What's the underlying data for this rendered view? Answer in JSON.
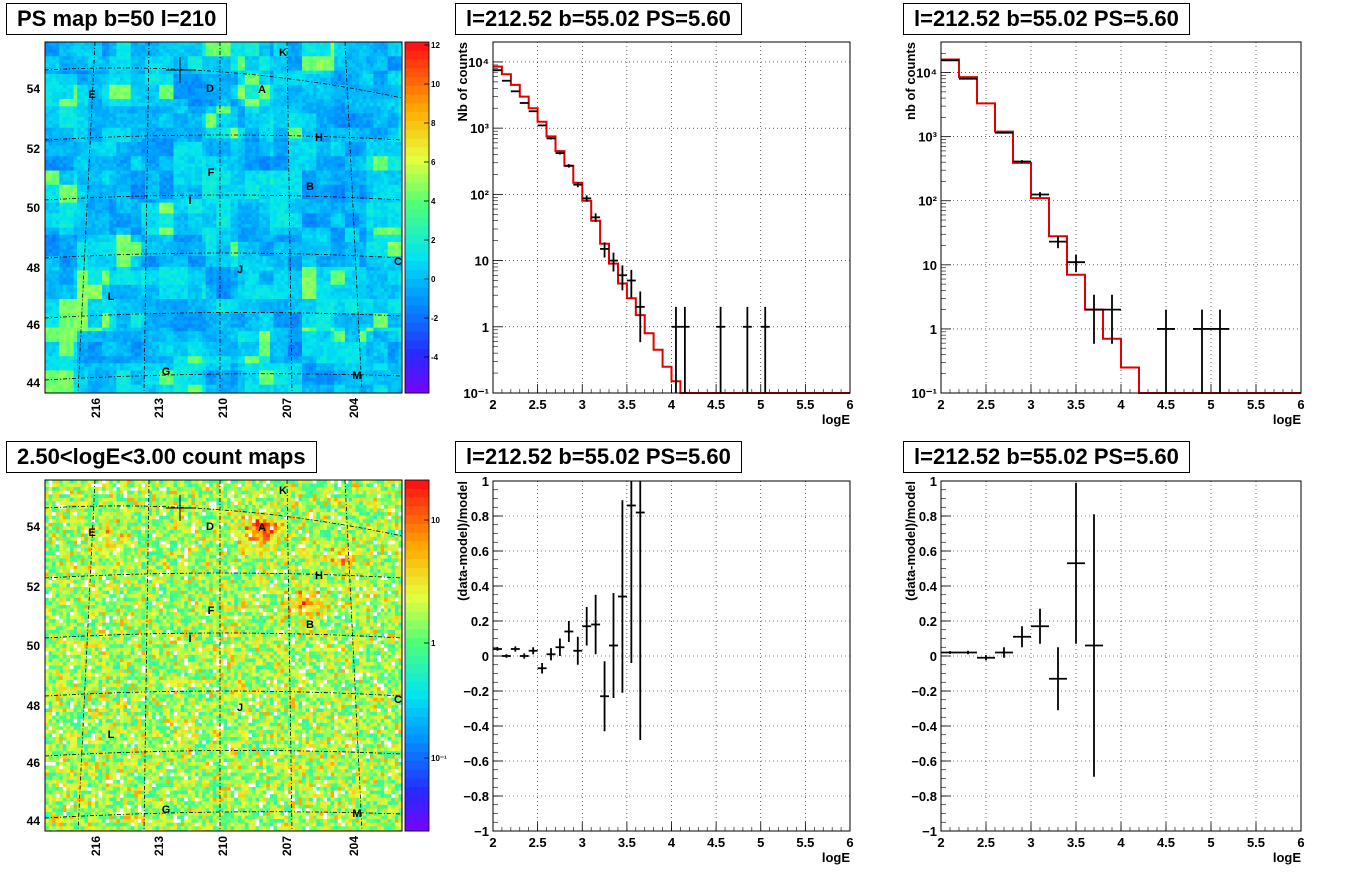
{
  "panels": {
    "map1": {
      "title": "PS map b=50 l=210"
    },
    "map2": {
      "title": "2.50<logE<3.00 count maps"
    },
    "spec1": {
      "title": "l=212.52 b=55.02 PS=5.60"
    },
    "spec2": {
      "title": "l=212.52 b=55.02 PS=5.60"
    },
    "res1": {
      "title": "l=212.52 b=55.02 PS=5.60"
    },
    "res2": {
      "title": "l=212.52 b=55.02 PS=5.60"
    }
  },
  "maps": {
    "y_ticks": [
      "44",
      "46",
      "48",
      "50",
      "52",
      "54"
    ],
    "x_ticks": [
      "216",
      "213",
      "210",
      "207",
      "204"
    ],
    "sources": [
      "K",
      "D",
      "A",
      "E",
      "H",
      "F",
      "B",
      "I",
      "C",
      "J",
      "L",
      "G",
      "M"
    ],
    "map1_scale": [
      "12",
      "10",
      "8",
      "6",
      "4",
      "2",
      "0",
      "-2",
      "-4"
    ],
    "map2_scale": [
      "10",
      "1",
      "10⁻¹"
    ]
  },
  "chart_data": [
    {
      "id": "spec1",
      "type": "line",
      "log_y": true,
      "title": "l=212.52 b=55.02 PS=5.60",
      "xlabel": "logE",
      "ylabel": "Nb of counts",
      "xlim": [
        2,
        6
      ],
      "ylim": [
        0.1,
        20000
      ],
      "grid": true,
      "x_ticks": [
        "2",
        "2.5",
        "3",
        "3.5",
        "4",
        "4.5",
        "5",
        "5.5",
        "6"
      ],
      "y_ticks": [
        "10⁻¹",
        "1",
        "10",
        "10²",
        "10³",
        "10⁴"
      ],
      "data_points": [
        {
          "x": 2.05,
          "y": 7500
        },
        {
          "x": 2.15,
          "y": 5200
        },
        {
          "x": 2.25,
          "y": 3600
        },
        {
          "x": 2.35,
          "y": 2400
        },
        {
          "x": 2.45,
          "y": 1800
        },
        {
          "x": 2.55,
          "y": 1100
        },
        {
          "x": 2.65,
          "y": 700
        },
        {
          "x": 2.75,
          "y": 420
        },
        {
          "x": 2.85,
          "y": 270
        },
        {
          "x": 2.95,
          "y": 140
        },
        {
          "x": 3.05,
          "y": 87
        },
        {
          "x": 3.15,
          "y": 45
        },
        {
          "x": 3.25,
          "y": 15
        },
        {
          "x": 3.35,
          "y": 10
        },
        {
          "x": 3.45,
          "y": 6
        },
        {
          "x": 3.55,
          "y": 5
        },
        {
          "x": 3.65,
          "y": 2
        },
        {
          "x": 4.05,
          "y": 1
        },
        {
          "x": 4.15,
          "y": 1
        },
        {
          "x": 4.55,
          "y": 1
        },
        {
          "x": 4.85,
          "y": 1
        },
        {
          "x": 5.05,
          "y": 1
        }
      ],
      "model_edges": [
        2,
        2.1,
        2.2,
        2.3,
        2.4,
        2.5,
        2.6,
        2.7,
        2.8,
        2.9,
        3.0,
        3.1,
        3.2,
        3.3,
        3.4,
        3.5,
        3.6,
        3.7,
        3.8,
        3.9,
        4.0,
        4.1,
        4.2,
        6.0
      ],
      "model_values": [
        8500,
        6500,
        4500,
        3000,
        2000,
        1250,
        750,
        450,
        270,
        150,
        80,
        40,
        18,
        9,
        4.5,
        2.7,
        1.5,
        0.8,
        0.45,
        0.25,
        0.15,
        0.1,
        0.1
      ]
    },
    {
      "id": "spec2",
      "type": "line",
      "log_y": true,
      "title": "l=212.52 b=55.02 PS=5.60",
      "xlabel": "logE",
      "ylabel": "nb of counts",
      "xlim": [
        2,
        6
      ],
      "ylim": [
        0.1,
        30000
      ],
      "grid": true,
      "x_ticks": [
        "2",
        "2.5",
        "3",
        "3.5",
        "4",
        "4.5",
        "5",
        "5.5",
        "6"
      ],
      "y_ticks": [
        "10⁻¹",
        "1",
        "10",
        "10²",
        "10³",
        "10⁴"
      ],
      "data_points": [
        {
          "x": 2.1,
          "y": 15500
        },
        {
          "x": 2.3,
          "y": 8000
        },
        {
          "x": 2.7,
          "y": 1150
        },
        {
          "x": 2.9,
          "y": 410
        },
        {
          "x": 3.1,
          "y": 125
        },
        {
          "x": 3.3,
          "y": 23
        },
        {
          "x": 3.5,
          "y": 11
        },
        {
          "x": 3.7,
          "y": 2
        },
        {
          "x": 3.9,
          "y": 2
        },
        {
          "x": 4.5,
          "y": 1
        },
        {
          "x": 4.9,
          "y": 1
        },
        {
          "x": 5.1,
          "y": 1
        }
      ],
      "model_edges": [
        2,
        2.2,
        2.4,
        2.6,
        2.8,
        3.0,
        3.2,
        3.4,
        3.6,
        3.8,
        4.0,
        4.2,
        6.0
      ],
      "model_values": [
        16000,
        8500,
        3300,
        1200,
        390,
        110,
        28,
        7,
        2,
        0.7,
        0.25,
        0.1
      ]
    },
    {
      "id": "res1",
      "type": "scatter",
      "title": "l=212.52 b=55.02 PS=5.60",
      "xlabel": "logE",
      "ylabel": "(data-model)/model",
      "xlim": [
        2,
        6
      ],
      "ylim": [
        -1,
        1
      ],
      "grid": true,
      "x_ticks": [
        "2",
        "2.5",
        "3",
        "3.5",
        "4",
        "4.5",
        "5",
        "5.5",
        "6"
      ],
      "y_ticks": [
        "−1",
        "−0.8",
        "−0.6",
        "−0.4",
        "−0.2",
        "0",
        "0.2",
        "0.4",
        "0.6",
        "0.8",
        "1"
      ],
      "points": [
        {
          "x": 2.05,
          "y": 0.04,
          "err": 0.01
        },
        {
          "x": 2.15,
          "y": 0.0,
          "err": 0.01
        },
        {
          "x": 2.25,
          "y": 0.04,
          "err": 0.015
        },
        {
          "x": 2.35,
          "y": 0.0,
          "err": 0.015
        },
        {
          "x": 2.45,
          "y": 0.03,
          "err": 0.02
        },
        {
          "x": 2.55,
          "y": -0.07,
          "err": 0.03
        },
        {
          "x": 2.65,
          "y": 0.01,
          "err": 0.035
        },
        {
          "x": 2.75,
          "y": 0.05,
          "err": 0.05
        },
        {
          "x": 2.85,
          "y": 0.14,
          "err": 0.06
        },
        {
          "x": 2.95,
          "y": 0.03,
          "err": 0.08
        },
        {
          "x": 3.05,
          "y": 0.17,
          "err": 0.11
        },
        {
          "x": 3.15,
          "y": 0.18,
          "err": 0.17
        },
        {
          "x": 3.25,
          "y": -0.23,
          "err": 0.2
        },
        {
          "x": 3.35,
          "y": 0.06,
          "err": 0.3
        },
        {
          "x": 3.45,
          "y": 0.34,
          "err": 0.55
        },
        {
          "x": 3.55,
          "y": 0.86,
          "err": 0.9
        },
        {
          "x": 3.65,
          "y": 0.82,
          "err": 1.3
        }
      ]
    },
    {
      "id": "res2",
      "type": "scatter",
      "title": "l=212.52 b=55.02 PS=5.60",
      "xlabel": "logE",
      "ylabel": "(data-model)/model",
      "xlim": [
        2,
        6
      ],
      "ylim": [
        -1,
        1
      ],
      "grid": true,
      "x_ticks": [
        "2",
        "2.5",
        "3",
        "3.5",
        "4",
        "4.5",
        "5",
        "5.5",
        "6"
      ],
      "y_ticks": [
        "−1",
        "−0.8",
        "−0.6",
        "−0.4",
        "−0.2",
        "0",
        "0.2",
        "0.4",
        "0.6",
        "0.8",
        "1"
      ],
      "points": [
        {
          "x": 2.1,
          "y": 0.02,
          "err": 0.008
        },
        {
          "x": 2.3,
          "y": 0.02,
          "err": 0.01
        },
        {
          "x": 2.5,
          "y": -0.01,
          "err": 0.015
        },
        {
          "x": 2.7,
          "y": 0.02,
          "err": 0.03
        },
        {
          "x": 2.9,
          "y": 0.11,
          "err": 0.06
        },
        {
          "x": 3.1,
          "y": 0.17,
          "err": 0.1
        },
        {
          "x": 3.3,
          "y": -0.13,
          "err": 0.18
        },
        {
          "x": 3.5,
          "y": 0.53,
          "err": 0.46
        },
        {
          "x": 3.7,
          "y": 0.06,
          "err": 0.75
        }
      ]
    }
  ]
}
